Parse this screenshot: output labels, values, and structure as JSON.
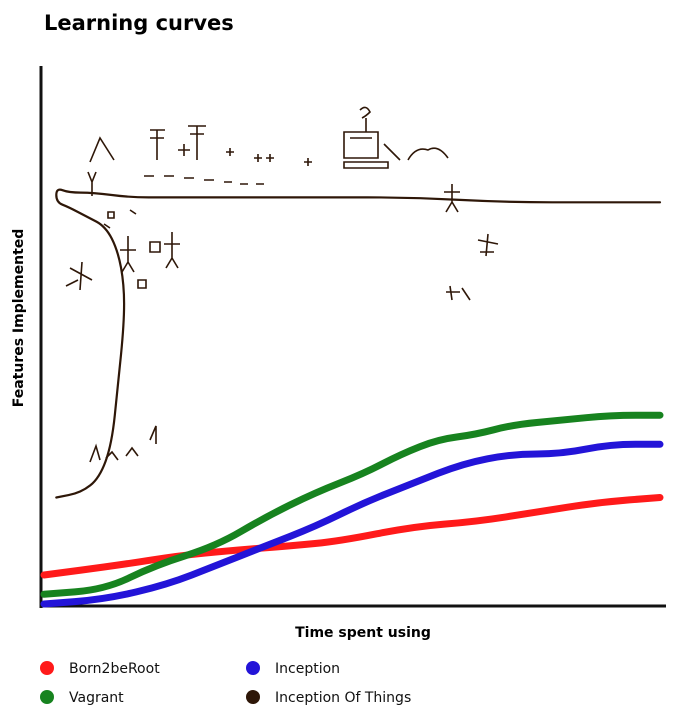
{
  "chart_data": {
    "type": "line",
    "title": "Learning curves",
    "xlabel": "Time spent using",
    "ylabel": "Features Implemented",
    "xlim": [
      0,
      100
    ],
    "ylim": [
      0,
      100
    ],
    "grid": false,
    "legend_position": "bottom",
    "series": [
      {
        "name": "Born2beRoot",
        "color": "#ff1a1a",
        "x": [
          0,
          12,
          22,
          30,
          40,
          48,
          60,
          70,
          80,
          90,
          100
        ],
        "y": [
          6,
          8,
          10,
          11,
          12,
          13,
          16,
          17,
          19,
          21,
          22
        ]
      },
      {
        "name": "Vagrant",
        "color": "#17831f",
        "x": [
          0,
          10,
          18,
          28,
          36,
          44,
          52,
          58,
          64,
          70,
          76,
          84,
          92,
          100
        ],
        "y": [
          2,
          3,
          8,
          12,
          18,
          23,
          27,
          31,
          34,
          35,
          37,
          38,
          39,
          39
        ]
      },
      {
        "name": "Inception",
        "color": "#2314d8",
        "x": [
          0,
          10,
          20,
          28,
          36,
          44,
          52,
          60,
          68,
          76,
          84,
          92,
          100
        ],
        "y": [
          0,
          1,
          4,
          8,
          12,
          16,
          21,
          25,
          29,
          31,
          31,
          33,
          33
        ]
      },
      {
        "name": "Inception Of Things",
        "color": "#2e1708",
        "x": [
          2,
          6,
          9,
          11,
          12,
          13,
          13,
          12,
          10,
          7,
          4,
          2,
          2,
          4,
          8,
          14,
          20,
          30,
          45,
          60,
          75,
          90,
          100
        ],
        "y": [
          22,
          23,
          26,
          33,
          45,
          58,
          66,
          73,
          78,
          80,
          82,
          83,
          86,
          85,
          85,
          84,
          84,
          84,
          84,
          84,
          83,
          83,
          83
        ]
      }
    ]
  },
  "legend": [
    {
      "name": "Born2beRoot",
      "color": "#ff1a1a"
    },
    {
      "name": "Inception",
      "color": "#2314d8"
    },
    {
      "name": "Vagrant",
      "color": "#17831f"
    },
    {
      "name": "Inception Of Things",
      "color": "#2e1708"
    }
  ]
}
